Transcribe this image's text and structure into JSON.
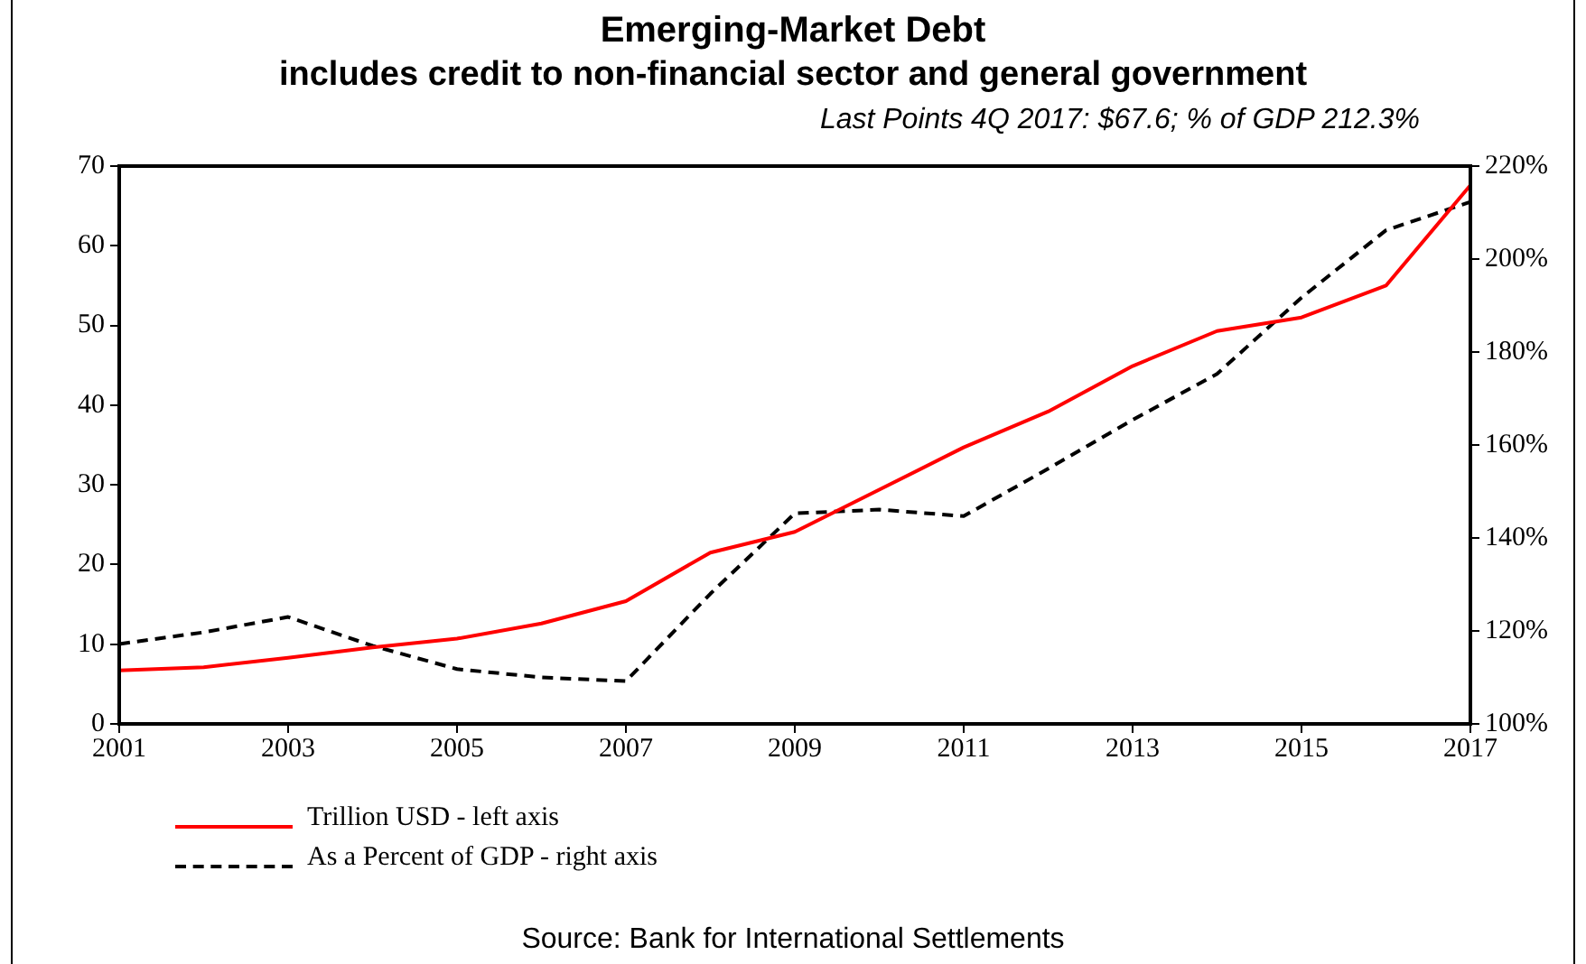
{
  "chart_data": {
    "type": "line",
    "title": "Emerging-Market Debt",
    "subtitle": "includes credit to non-financial sector and general government",
    "annotations": [
      "Last Points 4Q 2017: $67.6; % of GDP 212.3%",
      "Source: Bank for International Settlements"
    ],
    "x": [
      2001,
      2002,
      2003,
      2004,
      2005,
      2006,
      2007,
      2008,
      2009,
      2010,
      2011,
      2012,
      2013,
      2014,
      2015,
      2016,
      2017
    ],
    "series": [
      {
        "name": "Trillion USD - left axis",
        "color": "#ff0000",
        "line_style": "solid",
        "values": [
          6.7,
          7.1,
          8.3,
          9.6,
          10.7,
          12.6,
          15.4,
          21.5,
          24.1,
          29.4,
          34.7,
          39.2,
          44.9,
          49.3,
          51.0,
          55.0,
          67.6
        ]
      },
      {
        "name": "As a Percent of GDP - right axis",
        "color": "#000000",
        "line_style": "dashed",
        "axis": "y2",
        "values": [
          117.2,
          119.7,
          123.0,
          116.8,
          111.8,
          110.0,
          109.2,
          128.0,
          145.3,
          146.1,
          144.7,
          154.9,
          165.4,
          175.3,
          191.7,
          206.2,
          212.3
        ]
      }
    ],
    "xlim": [
      2001,
      2017
    ],
    "xticks": [
      2001,
      2003,
      2005,
      2007,
      2009,
      2011,
      2013,
      2015,
      2017
    ],
    "ylim": [
      0,
      70
    ],
    "yticks": [
      0,
      10,
      20,
      30,
      40,
      50,
      60,
      70
    ],
    "y2lim": [
      100,
      220
    ],
    "y2ticks": [
      {
        "value": 100,
        "label": "100%"
      },
      {
        "value": 120,
        "label": "120%"
      },
      {
        "value": 140,
        "label": "140%"
      },
      {
        "value": 160,
        "label": "160%"
      },
      {
        "value": 180,
        "label": "180%"
      },
      {
        "value": 200,
        "label": "200%"
      },
      {
        "value": 220,
        "label": "220%"
      }
    ],
    "grid": false,
    "legend": "bottom left",
    "marker": "none"
  }
}
